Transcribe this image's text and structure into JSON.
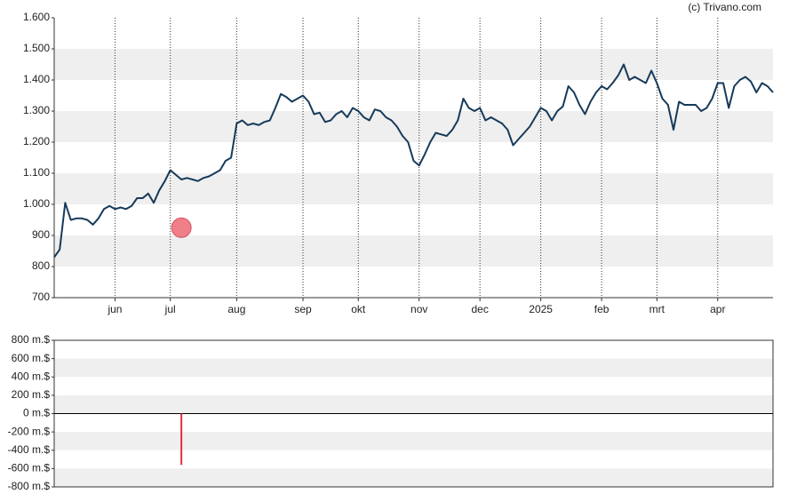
{
  "chart_data": [
    {
      "type": "line",
      "source": "(c) Trivano.com",
      "categories": [
        null,
        null,
        null,
        null,
        null,
        null,
        null,
        null,
        null,
        null,
        null,
        "jun",
        null,
        null,
        null,
        null,
        null,
        null,
        null,
        null,
        null,
        "jul",
        null,
        null,
        null,
        null,
        null,
        null,
        null,
        null,
        null,
        null,
        null,
        "aug",
        null,
        null,
        null,
        null,
        null,
        null,
        null,
        null,
        null,
        null,
        null,
        "sep",
        null,
        null,
        null,
        null,
        null,
        null,
        null,
        null,
        null,
        "okt",
        null,
        null,
        null,
        null,
        null,
        null,
        null,
        null,
        null,
        null,
        "nov",
        null,
        null,
        null,
        null,
        null,
        null,
        null,
        null,
        null,
        null,
        "dec",
        null,
        null,
        null,
        null,
        null,
        null,
        null,
        null,
        null,
        null,
        "2025",
        null,
        null,
        null,
        null,
        null,
        null,
        null,
        null,
        null,
        null,
        "feb",
        null,
        null,
        null,
        null,
        null,
        null,
        null,
        null,
        null,
        "mrt",
        null,
        null,
        null,
        null,
        null,
        null,
        null,
        null,
        null,
        null,
        "apr",
        null,
        null,
        null,
        null,
        null,
        null,
        null,
        null,
        null,
        null
      ],
      "values": [
        830,
        855,
        1005,
        950,
        955,
        955,
        950,
        935,
        955,
        985,
        995,
        985,
        990,
        985,
        995,
        1020,
        1020,
        1035,
        1005,
        1045,
        1075,
        1110,
        1095,
        1080,
        1085,
        1080,
        1075,
        1085,
        1090,
        1100,
        1110,
        1140,
        1150,
        1260,
        1270,
        1255,
        1260,
        1255,
        1265,
        1270,
        1310,
        1355,
        1345,
        1330,
        1340,
        1350,
        1330,
        1290,
        1295,
        1265,
        1270,
        1290,
        1300,
        1280,
        1310,
        1300,
        1280,
        1270,
        1305,
        1300,
        1280,
        1270,
        1250,
        1220,
        1200,
        1140,
        1125,
        1160,
        1200,
        1230,
        1225,
        1220,
        1240,
        1270,
        1340,
        1310,
        1300,
        1310,
        1270,
        1280,
        1270,
        1260,
        1240,
        1190,
        1210,
        1230,
        1250,
        1280,
        1310,
        1300,
        1270,
        1300,
        1315,
        1380,
        1360,
        1320,
        1290,
        1330,
        1360,
        1380,
        1370,
        1390,
        1415,
        1450,
        1400,
        1410,
        1400,
        1390,
        1430,
        1390,
        1340,
        1320,
        1240,
        1330,
        1320,
        1320,
        1320,
        1300,
        1310,
        1340,
        1390,
        1390,
        1310,
        1380,
        1400,
        1410,
        1395,
        1360,
        1390,
        1380,
        1360
      ],
      "color": "#163a5a",
      "markers": {
        "color": "#f0727c",
        "values": [
          null,
          null,
          null,
          null,
          null,
          null,
          null,
          null,
          null,
          null,
          null,
          null,
          null,
          null,
          null,
          null,
          null,
          null,
          null,
          null,
          null,
          null,
          null,
          925,
          null,
          null,
          null,
          null,
          null,
          null,
          null,
          null,
          null,
          null,
          null,
          null,
          null,
          null,
          null,
          null,
          null,
          null,
          null,
          null,
          null,
          null,
          null,
          null,
          null,
          null,
          null,
          null,
          null,
          null,
          null,
          null,
          null,
          null,
          null,
          null,
          null,
          null,
          null,
          null,
          null,
          null,
          null,
          null,
          null,
          null,
          null,
          null,
          null,
          null,
          null,
          null,
          null,
          null,
          null,
          null,
          null,
          null,
          null,
          null,
          null,
          null,
          null,
          null,
          null,
          null,
          null,
          null,
          null,
          null,
          null,
          null,
          null,
          null,
          null,
          null,
          null,
          null,
          null,
          null,
          null,
          null,
          null,
          null,
          null,
          null,
          null,
          null,
          null,
          null,
          null,
          null,
          null,
          null,
          null,
          null,
          null,
          null,
          null,
          null,
          null,
          null,
          null,
          null,
          null,
          null,
          null
        ]
      },
      "ylim": [
        700,
        1600
      ],
      "yticks": [
        700,
        800,
        900,
        {
          "value": 1000,
          "label": "1.000"
        },
        {
          "value": 1100,
          "label": "1.100"
        },
        {
          "value": 1200,
          "label": "1.200"
        },
        {
          "value": 1300,
          "label": "1.300"
        },
        {
          "value": 1400,
          "label": "1.400"
        },
        {
          "value": 1500,
          "label": "1.500"
        },
        {
          "value": 1600,
          "label": "1.600"
        }
      ],
      "banded_grid": "odd",
      "vertical_grid": true
    },
    {
      "type": "bar",
      "color": "#e0303a",
      "values": [
        null,
        null,
        null,
        null,
        null,
        null,
        null,
        null,
        null,
        null,
        null,
        null,
        null,
        null,
        null,
        null,
        null,
        null,
        null,
        null,
        null,
        null,
        null,
        -560,
        null,
        null,
        null,
        null,
        null,
        null,
        null,
        null,
        null,
        null,
        null,
        null,
        null,
        null,
        null,
        null,
        null,
        null,
        null,
        null,
        null,
        null,
        null,
        null,
        null,
        null,
        null,
        null,
        null,
        null,
        null,
        null,
        null,
        null,
        null,
        null,
        null,
        null,
        null,
        null,
        null,
        null,
        null,
        null,
        null,
        null,
        null,
        null,
        null,
        null,
        null,
        null,
        null,
        null,
        null,
        null,
        null,
        null,
        null,
        null,
        null,
        null,
        null,
        null,
        null,
        null,
        null,
        null,
        null,
        null,
        null,
        null,
        null,
        null,
        null,
        null,
        null,
        null,
        null,
        null,
        null,
        null,
        null,
        null,
        null,
        null,
        null,
        null,
        null,
        null,
        null,
        null,
        null,
        null,
        null,
        null,
        null,
        null,
        null,
        null,
        null,
        null,
        null,
        null,
        null,
        null,
        null
      ],
      "ylim": [
        -800,
        800
      ],
      "yticks": [
        {
          "value": -800,
          "label": "-800 m.$"
        },
        {
          "value": -600,
          "label": "-600 m.$"
        },
        {
          "value": -400,
          "label": "-400 m.$"
        },
        {
          "value": -200,
          "label": "-200 m.$"
        },
        {
          "value": 0,
          "label": "0 m.$"
        },
        {
          "value": 200,
          "label": "200 m.$"
        },
        {
          "value": 400,
          "label": "400 m.$"
        },
        {
          "value": 600,
          "label": "600 m.$"
        },
        {
          "value": 800,
          "label": "800 m.$"
        }
      ],
      "banded_grid": "even"
    }
  ]
}
